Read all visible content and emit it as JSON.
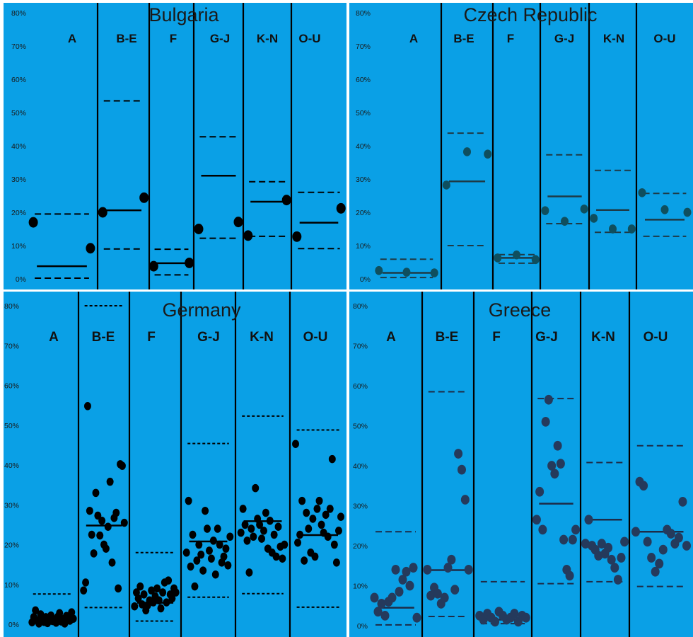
{
  "colors": {
    "background": "#0aa0e6",
    "divider": "#ffffff",
    "bulgaria_marker": "#000000",
    "czech_marker": "#0f4f5e",
    "germany_marker": "#000000",
    "greece_marker": "#253a5c"
  },
  "chart_data": [
    {
      "type": "scatter",
      "title": "Bulgaria",
      "categories": [
        "A",
        "B-E",
        "F",
        "G-J",
        "K-N",
        "O-U"
      ],
      "ylim": [
        0,
        80
      ],
      "y_ticks": [
        "0%",
        "10%",
        "20%",
        "30%",
        "40%",
        "50%",
        "60%",
        "70%",
        "80%"
      ],
      "grid": false,
      "points": [
        [
          17,
          9.2
        ],
        [
          20,
          24.4
        ],
        [
          3.8,
          4.8
        ],
        [
          15,
          17.1
        ],
        [
          13,
          23.7
        ],
        [
          12.7,
          21.2
        ]
      ],
      "median": [
        3.8,
        20.6,
        4.7,
        31,
        23.2,
        16.9
      ],
      "upper": [
        19.5,
        53.5,
        8.9,
        42.7,
        29.2,
        26
      ],
      "lower": [
        0.2,
        9,
        1.2,
        12.2,
        12.8,
        9.1
      ]
    },
    {
      "type": "scatter",
      "title": "Czech Republic",
      "categories": [
        "A",
        "B-E",
        "F",
        "G-J",
        "K-N",
        "O-U"
      ],
      "ylim": [
        0,
        80
      ],
      "y_ticks": [
        "0%",
        "10%",
        "20%",
        "30%",
        "40%",
        "50%",
        "60%",
        "70%",
        "80%"
      ],
      "grid": false,
      "points": [
        [
          2.5,
          2,
          1.8
        ],
        [
          28.2,
          38.2,
          37.5
        ],
        [
          6.3,
          7.2,
          5.8
        ],
        [
          20.5,
          17.3,
          21
        ],
        [
          18.2,
          15,
          15
        ],
        [
          25.9,
          20.8,
          20
        ]
      ],
      "median": [
        1.8,
        29.3,
        6.3,
        24.8,
        20.7,
        17.8
      ],
      "upper": [
        5.9,
        43.8,
        7.3,
        37.3,
        32.6,
        25.7
      ],
      "lower": [
        0.4,
        10,
        4.7,
        16.6,
        14,
        12.8
      ]
    },
    {
      "type": "scatter",
      "title": "Germany",
      "categories": [
        "A",
        "B-E",
        "F",
        "G-J",
        "K-N",
        "O-U"
      ],
      "ylim": [
        0,
        80
      ],
      "y_ticks": [
        "0%",
        "10%",
        "20%",
        "30%",
        "40%",
        "50%",
        "60%",
        "70%",
        "80%"
      ],
      "grid": false,
      "points": [
        [
          0.5,
          1.8,
          3.5,
          1,
          0.2,
          2.5,
          1.2,
          0.6,
          1.8,
          0.3,
          1.5,
          2.2,
          0.8,
          1.1,
          0.4,
          1.9,
          2.8,
          0.7,
          1.3,
          0.2,
          2.1,
          1.6,
          0.9,
          3,
          1.4
        ],
        [
          8.5,
          10.5,
          54.8,
          28.5,
          22.5,
          17.8,
          33,
          27.3,
          22.3,
          26,
          20,
          19,
          24.5,
          35.8,
          15.5,
          26.7,
          28,
          9,
          40.2,
          39.8,
          25.5
        ],
        [
          4.5,
          8,
          6.5,
          9.5,
          5,
          7.5,
          3.5,
          4.8,
          6,
          8.5,
          5.5,
          7,
          9,
          6,
          4,
          8,
          10.5,
          5.5,
          11,
          7.5,
          6.5,
          9,
          8
        ],
        [
          18,
          31,
          14.5,
          22.5,
          9.5,
          16,
          20,
          17.5,
          13.5,
          28.5,
          24,
          18.5,
          16.5,
          21,
          12.5,
          24,
          20,
          15.5,
          17,
          19,
          14.8,
          22
        ],
        [
          23,
          29,
          25,
          21,
          13,
          24,
          22,
          34.2,
          26.5,
          25,
          21.5,
          23.5,
          28,
          19,
          26,
          18,
          22.5,
          17,
          24.5,
          19.5,
          16.5,
          20
        ],
        [
          45.3,
          20.5,
          22.5,
          31,
          16,
          28,
          24,
          18,
          26.5,
          17,
          29,
          31,
          25,
          23,
          27.5,
          22,
          29,
          41.5,
          20,
          15.5,
          23.5,
          27
        ]
      ],
      "median": [
        1.5,
        24.8,
        5.4,
        20.8,
        25.9,
        22.4
      ],
      "upper": [
        7.6,
        80,
        18,
        45.4,
        52.3,
        48.8
      ],
      "lower": [
        0.3,
        4.2,
        0.8,
        6.8,
        7.7,
        4.3
      ]
    },
    {
      "type": "scatter",
      "title": "Greece",
      "categories": [
        "A",
        "B-E",
        "F",
        "G-J",
        "K-N",
        "O-U"
      ],
      "ylim": [
        0,
        80
      ],
      "y_ticks": [
        "0%",
        "10%",
        "20%",
        "30%",
        "40%",
        "50%",
        "60%",
        "70%",
        "80%"
      ],
      "grid": false,
      "points": [
        [
          7,
          3.5,
          5.5,
          2.5,
          6,
          7,
          14,
          8.5,
          11.5,
          13.5,
          10,
          14.5,
          2
        ],
        [
          14,
          7.5,
          9.5,
          8,
          5.5,
          7,
          14.5,
          16.5,
          9,
          43,
          39,
          31.5,
          14
        ],
        [
          2.5,
          1.5,
          3,
          2,
          1,
          3.5,
          2.5,
          1.5,
          2,
          3,
          1,
          2.5,
          2
        ],
        [
          26.5,
          33.5,
          24,
          51,
          56.5,
          40,
          38,
          45,
          40.5,
          21.5,
          14,
          12.5,
          21.5,
          24
        ],
        [
          20.5,
          26.5,
          20,
          19,
          17.5,
          20.5,
          18,
          19.5,
          16.5,
          14.5,
          11.5,
          17,
          21
        ],
        [
          23.5,
          36,
          35,
          21,
          17,
          13.5,
          15.5,
          19,
          24,
          23,
          20.5,
          22,
          31,
          20
        ]
      ],
      "median": [
        4.5,
        13.9,
        1.5,
        30.5,
        26.5,
        23.5
      ],
      "upper": [
        23.5,
        58.5,
        11,
        56.8,
        40.8,
        45
      ],
      "lower": [
        0.2,
        2.3,
        0.5,
        10.5,
        11,
        9.8
      ]
    }
  ]
}
